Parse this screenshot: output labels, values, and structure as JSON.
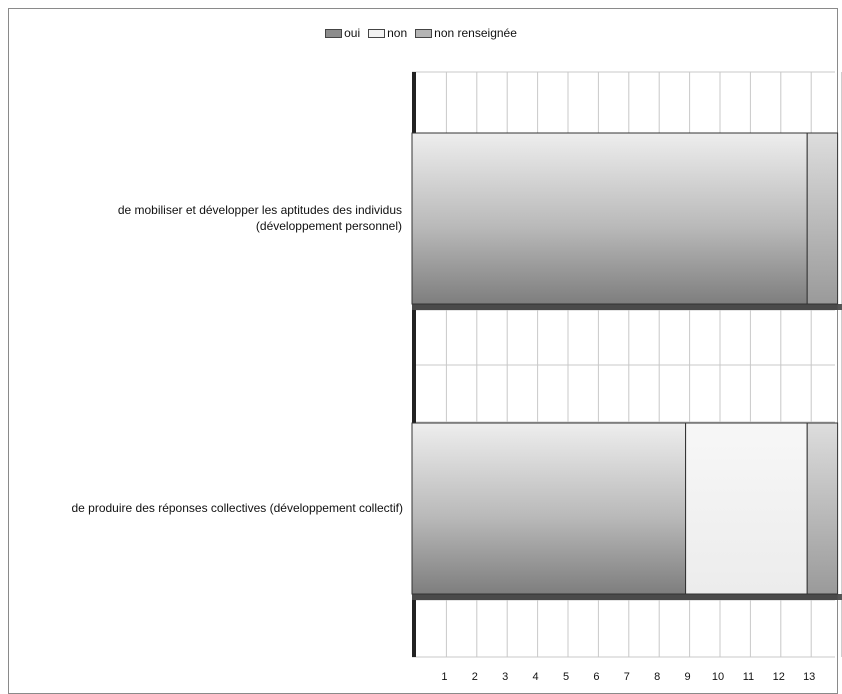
{
  "chart_data": {
    "type": "bar",
    "orientation": "horizontal",
    "stacked": true,
    "categories": [
      "de mobiliser et développer les aptitudes des individus\n(développement personnel)",
      "de produire des réponses collectives (développement collectif)"
    ],
    "series": [
      {
        "name": "oui",
        "values": [
          13,
          9
        ],
        "color": "#8c8c8c"
      },
      {
        "name": "non",
        "values": [
          0,
          4
        ],
        "color": "#f2f2f2"
      },
      {
        "name": "non renseignée",
        "values": [
          1,
          1
        ],
        "color": "#b4b4b4"
      }
    ],
    "xticks": [
      "1",
      "2",
      "3",
      "4",
      "5",
      "6",
      "7",
      "8",
      "9",
      "10",
      "11",
      "12",
      "13"
    ],
    "xlim": [
      0,
      14
    ],
    "grid": true,
    "legend_position": "top"
  }
}
